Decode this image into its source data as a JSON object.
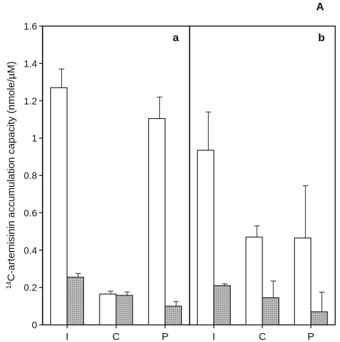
{
  "figure_label": "A",
  "chart_data": {
    "type": "bar",
    "ylabel": "14C-artemisinin accumulation capacity (nmole/µM)",
    "ylabel_super": "14",
    "ylabel_rest": "C-artemisinin accumulation capacity (nmole/µM)",
    "ylim": [
      0,
      1.6
    ],
    "yticks": [
      "0",
      "0.2",
      "0.4",
      "0.6",
      "0.8",
      "1",
      "1.2",
      "1.4",
      "1.6"
    ],
    "ytick_values": [
      0,
      0.2,
      0.4,
      0.6,
      0.8,
      1.0,
      1.2,
      1.4,
      1.6
    ],
    "categories": [
      "I",
      "C",
      "P"
    ],
    "series_fills": [
      "#ffffff",
      "#bdbdbd"
    ],
    "panels": [
      {
        "label": "a",
        "series": [
          {
            "values": [
              1.27,
              0.165,
              1.105
            ],
            "errors": [
              0.1,
              0.015,
              0.115
            ]
          },
          {
            "values": [
              0.255,
              0.158,
              0.1
            ],
            "errors": [
              0.02,
              0.018,
              0.025
            ]
          }
        ]
      },
      {
        "label": "b",
        "series": [
          {
            "values": [
              0.935,
              0.47,
              0.465
            ],
            "errors": [
              0.205,
              0.06,
              0.28
            ]
          },
          {
            "values": [
              0.21,
              0.145,
              0.07
            ],
            "errors": [
              0.01,
              0.09,
              0.105
            ]
          }
        ]
      }
    ]
  }
}
